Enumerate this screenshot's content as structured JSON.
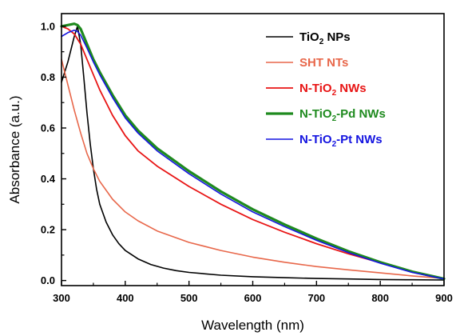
{
  "chart_data": {
    "type": "line",
    "title": "",
    "xlabel": "Wavelength (nm)",
    "ylabel": "Absorbance (a.u.)",
    "xlim": [
      300,
      900
    ],
    "ylim": [
      -0.02,
      1.05
    ],
    "xticks": [
      300,
      400,
      500,
      600,
      700,
      800,
      900
    ],
    "yticks": [
      0.0,
      0.2,
      0.4,
      0.6,
      0.8,
      1.0
    ],
    "ytick_labels": [
      "0.0",
      "0.2",
      "0.4",
      "0.6",
      "0.8",
      "1.0"
    ],
    "grid": false,
    "legend_position": "top-right",
    "series": [
      {
        "name": "TiO2 NPs",
        "label_main": "TiO",
        "label_sub": "2",
        "label_rest": " NPs",
        "color": "#000000",
        "width": 1.6,
        "x": [
          300,
          305,
          310,
          315,
          320,
          325,
          330,
          335,
          340,
          345,
          350,
          355,
          360,
          370,
          380,
          390,
          400,
          420,
          440,
          460,
          480,
          500,
          550,
          600,
          650,
          700,
          750,
          800,
          850,
          900
        ],
        "y": [
          0.78,
          0.82,
          0.86,
          0.91,
          0.96,
          1.0,
          0.93,
          0.8,
          0.66,
          0.54,
          0.44,
          0.36,
          0.3,
          0.23,
          0.18,
          0.145,
          0.118,
          0.085,
          0.063,
          0.049,
          0.039,
          0.032,
          0.021,
          0.015,
          0.011,
          0.008,
          0.006,
          0.004,
          0.003,
          0.002
        ]
      },
      {
        "name": "SHT NTs",
        "label_main": "SHT NTs",
        "label_sub": "",
        "label_rest": "",
        "color": "#e8674a",
        "width": 1.6,
        "x": [
          300,
          310,
          320,
          330,
          340,
          350,
          360,
          380,
          400,
          420,
          450,
          500,
          550,
          600,
          650,
          700,
          750,
          800,
          850,
          900
        ],
        "y": [
          0.87,
          0.77,
          0.67,
          0.58,
          0.5,
          0.44,
          0.39,
          0.32,
          0.27,
          0.235,
          0.195,
          0.15,
          0.118,
          0.092,
          0.072,
          0.055,
          0.042,
          0.03,
          0.018,
          0.008
        ]
      },
      {
        "name": "N-TiO2 NWs",
        "label_main": "N-TiO",
        "label_sub": "2",
        "label_rest": " NWs",
        "color": "#e81414",
        "width": 1.8,
        "x": [
          300,
          310,
          320,
          330,
          340,
          350,
          360,
          380,
          400,
          420,
          450,
          500,
          550,
          600,
          650,
          700,
          750,
          800,
          850,
          900
        ],
        "y": [
          1.0,
          0.99,
          0.97,
          0.93,
          0.87,
          0.81,
          0.75,
          0.65,
          0.57,
          0.51,
          0.45,
          0.37,
          0.3,
          0.24,
          0.19,
          0.145,
          0.105,
          0.07,
          0.035,
          0.008
        ]
      },
      {
        "name": "N-TiO2-Pd NWs",
        "label_main": "N-TiO",
        "label_sub": "2",
        "label_rest": "-Pd NWs",
        "color": "#1e8a1e",
        "width": 3.2,
        "x": [
          300,
          310,
          320,
          325,
          330,
          340,
          350,
          360,
          380,
          400,
          420,
          450,
          500,
          550,
          600,
          650,
          700,
          750,
          800,
          850,
          900
        ],
        "y": [
          1.0,
          1.005,
          1.01,
          1.005,
          0.99,
          0.93,
          0.87,
          0.82,
          0.73,
          0.65,
          0.59,
          0.52,
          0.43,
          0.35,
          0.28,
          0.22,
          0.165,
          0.115,
          0.072,
          0.035,
          0.007
        ]
      },
      {
        "name": "N-TiO2-Pt NWs",
        "label_main": "N-TiO",
        "label_sub": "2",
        "label_rest": "-Pt NWs",
        "color": "#1414e0",
        "width": 1.6,
        "x": [
          300,
          310,
          320,
          325,
          330,
          340,
          350,
          360,
          380,
          400,
          420,
          450,
          500,
          550,
          600,
          650,
          700,
          750,
          800,
          850,
          900
        ],
        "y": [
          0.96,
          0.975,
          0.985,
          0.98,
          0.965,
          0.915,
          0.86,
          0.81,
          0.72,
          0.64,
          0.58,
          0.51,
          0.42,
          0.34,
          0.27,
          0.212,
          0.158,
          0.11,
          0.068,
          0.032,
          0.006
        ]
      }
    ]
  }
}
